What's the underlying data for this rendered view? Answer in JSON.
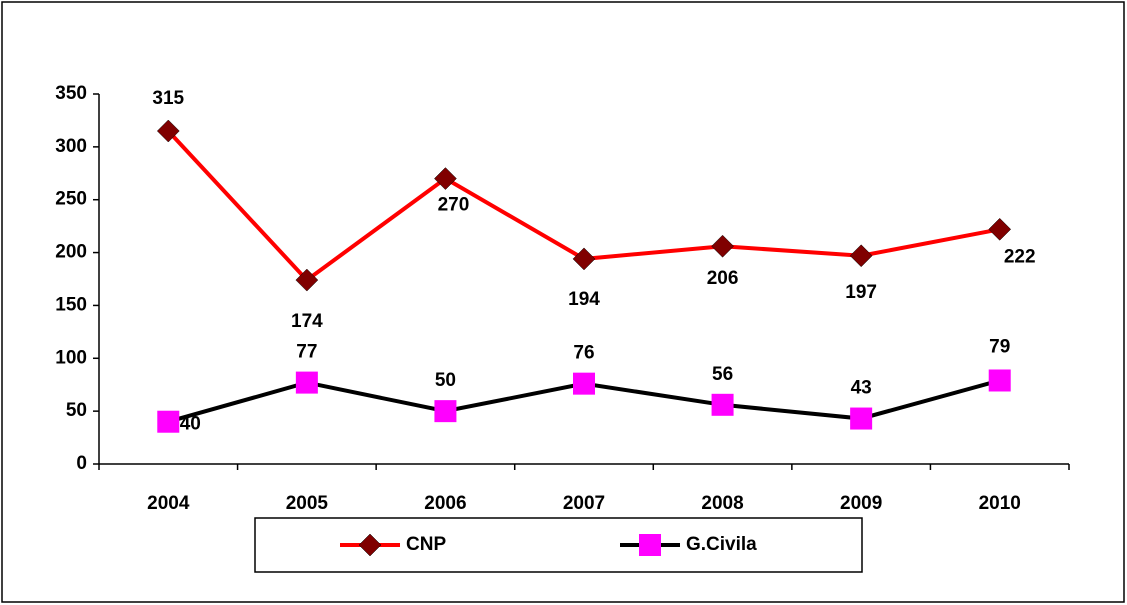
{
  "chart_data": {
    "type": "line",
    "categories": [
      "2004",
      "2005",
      "2006",
      "2007",
      "2008",
      "2009",
      "2010"
    ],
    "series": [
      {
        "name": "CNP",
        "color": "#ff0000",
        "marker_color": "#800000",
        "marker": "diamond",
        "values": [
          315,
          174,
          270,
          194,
          206,
          197,
          222
        ]
      },
      {
        "name": "G.Civila",
        "color": "#000000",
        "marker_color": "#ff00ff",
        "marker": "square",
        "values": [
          40,
          77,
          50,
          76,
          56,
          43,
          79
        ]
      }
    ],
    "ylim": [
      0,
      350
    ],
    "yticks": [
      0,
      50,
      100,
      150,
      200,
      250,
      300,
      350
    ],
    "grid": false,
    "legend": "bottom"
  }
}
